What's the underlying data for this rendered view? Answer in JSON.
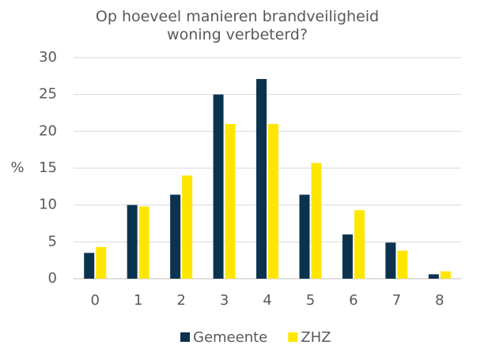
{
  "chart_data": {
    "type": "bar",
    "title": "Op hoeveel manieren brandveiligheid woning verbeterd?",
    "y_label": "%",
    "categories": [
      "0",
      "1",
      "2",
      "3",
      "4",
      "5",
      "6",
      "7",
      "8"
    ],
    "series": [
      {
        "name": "Gemeente",
        "color": "#0b3350",
        "values": [
          3.5,
          10.0,
          11.4,
          25.0,
          27.1,
          11.4,
          6.0,
          4.9,
          0.6
        ]
      },
      {
        "name": "ZHZ",
        "color": "#ffe600",
        "values": [
          4.3,
          9.8,
          14.0,
          21.0,
          21.0,
          15.7,
          9.3,
          3.8,
          1.0
        ]
      }
    ],
    "ylim": [
      0,
      30
    ],
    "yticks": [
      0,
      5,
      10,
      15,
      20,
      25,
      30
    ],
    "grid": true,
    "legend": "bottom"
  }
}
